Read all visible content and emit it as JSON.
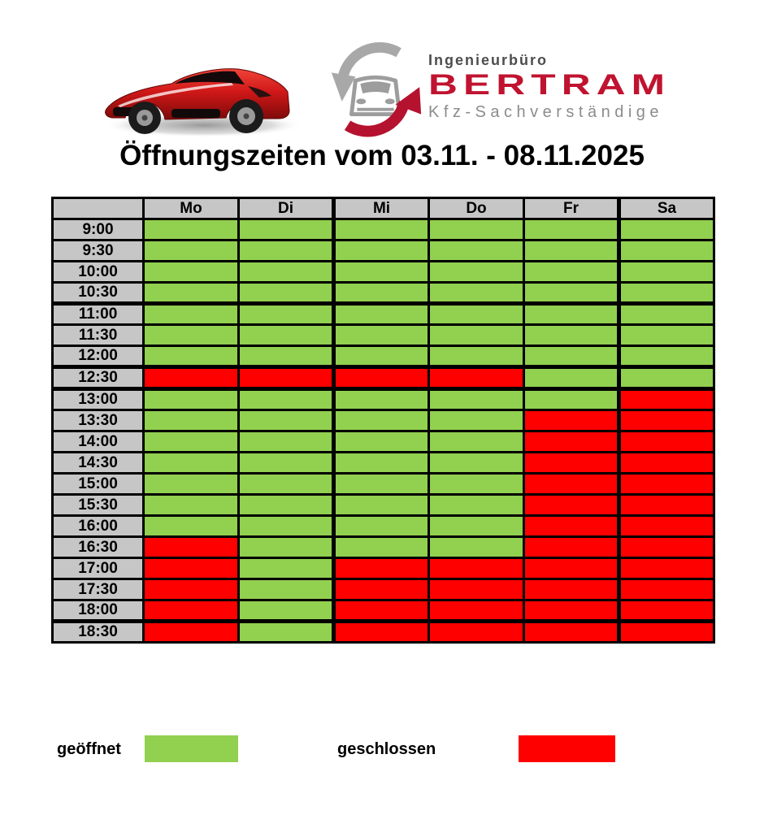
{
  "logo": {
    "line1": "Ingenieurbüro",
    "line2": "BERTRAM",
    "line3": "Kfz-Sachverständige"
  },
  "title": "Öffnungszeiten vom 03.11. - 08.11.2025",
  "table": {
    "day_columns": [
      "Mo",
      "Di",
      "Mi",
      "Do",
      "Fr",
      "Sa"
    ],
    "rows": [
      {
        "time": "9:00",
        "states": [
          "o",
          "o",
          "o",
          "o",
          "o",
          "o"
        ]
      },
      {
        "time": "9:30",
        "states": [
          "o",
          "o",
          "o",
          "o",
          "o",
          "o"
        ]
      },
      {
        "time": "10:00",
        "states": [
          "o",
          "o",
          "o",
          "o",
          "o",
          "o"
        ]
      },
      {
        "time": "10:30",
        "states": [
          "o",
          "o",
          "o",
          "o",
          "o",
          "o"
        ]
      },
      {
        "time": "11:00",
        "states": [
          "o",
          "o",
          "o",
          "o",
          "o",
          "o"
        ]
      },
      {
        "time": "11:30",
        "states": [
          "o",
          "o",
          "o",
          "o",
          "o",
          "o"
        ]
      },
      {
        "time": "12:00",
        "states": [
          "o",
          "o",
          "o",
          "o",
          "o",
          "o"
        ]
      },
      {
        "time": "12:30",
        "states": [
          "c",
          "c",
          "c",
          "c",
          "o",
          "o"
        ]
      },
      {
        "time": "13:00",
        "states": [
          "o",
          "o",
          "o",
          "o",
          "o",
          "c"
        ]
      },
      {
        "time": "13:30",
        "states": [
          "o",
          "o",
          "o",
          "o",
          "c",
          "c"
        ]
      },
      {
        "time": "14:00",
        "states": [
          "o",
          "o",
          "o",
          "o",
          "c",
          "c"
        ]
      },
      {
        "time": "14:30",
        "states": [
          "o",
          "o",
          "o",
          "o",
          "c",
          "c"
        ]
      },
      {
        "time": "15:00",
        "states": [
          "o",
          "o",
          "o",
          "o",
          "c",
          "c"
        ]
      },
      {
        "time": "15:30",
        "states": [
          "o",
          "o",
          "o",
          "o",
          "c",
          "c"
        ]
      },
      {
        "time": "16:00",
        "states": [
          "o",
          "o",
          "o",
          "o",
          "c",
          "c"
        ]
      },
      {
        "time": "16:30",
        "states": [
          "c",
          "o",
          "o",
          "o",
          "c",
          "c"
        ]
      },
      {
        "time": "17:00",
        "states": [
          "c",
          "o",
          "c",
          "c",
          "c",
          "c"
        ]
      },
      {
        "time": "17:30",
        "states": [
          "c",
          "o",
          "c",
          "c",
          "c",
          "c"
        ]
      },
      {
        "time": "18:00",
        "states": [
          "c",
          "o",
          "c",
          "c",
          "c",
          "c"
        ]
      },
      {
        "time": "18:30",
        "states": [
          "c",
          "o",
          "c",
          "c",
          "c",
          "c"
        ]
      }
    ],
    "state_legend": {
      "o": "geöffnet",
      "c": "geschlossen"
    },
    "thick_bottom_after_times": [
      "10:30",
      "12:00",
      "12:30",
      "18:00"
    ],
    "thick_right_after_days": [
      "Di",
      "Fr"
    ]
  },
  "legend": {
    "open_label": "geöffnet",
    "closed_label": "geschlossen"
  },
  "colors": {
    "open": "#92D050",
    "closed": "#FF0000",
    "header_bg": "#C6C6C6",
    "brand_red": "#C01330",
    "logo_dark_gray": "#4d4d4d",
    "logo_light_gray": "#8c8c8c"
  }
}
